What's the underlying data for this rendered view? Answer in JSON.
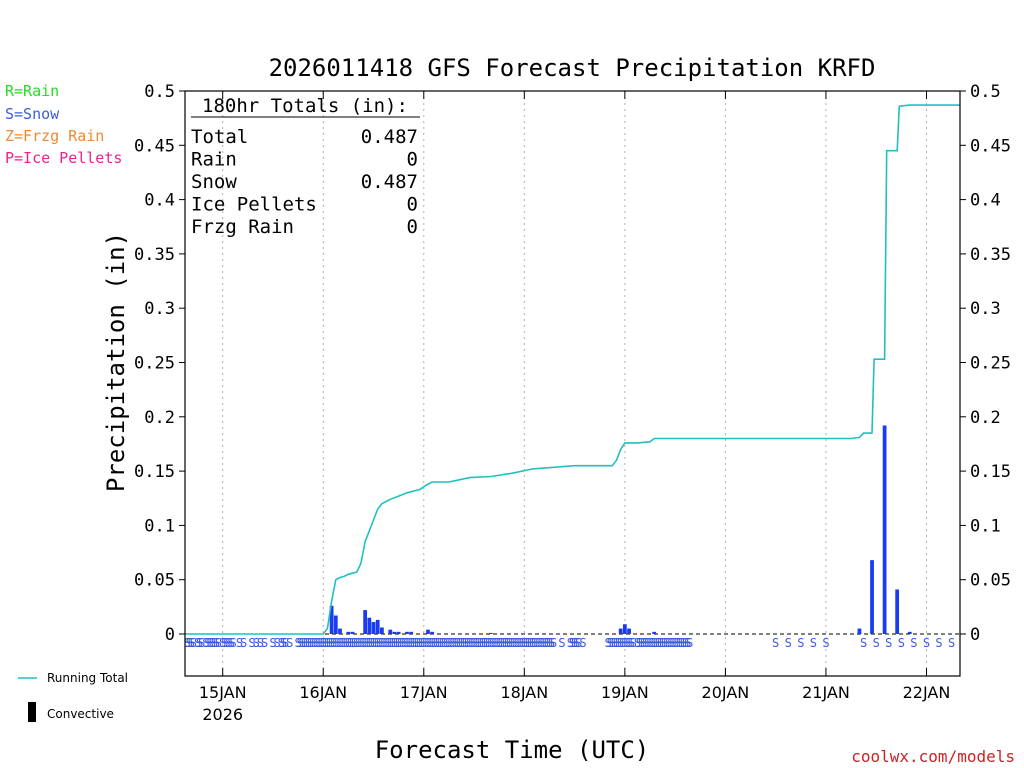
{
  "legend_left": {
    "rain": "R=Rain",
    "snow": "S=Snow",
    "frzg": "Z=Frzg Rain",
    "pellets": "P=Ice Pellets"
  },
  "legend_bottom": {
    "running_total": "Running Total",
    "convective": "Convective"
  },
  "totals_box": {
    "header": "180hr Totals (in):",
    "rows": [
      {
        "label": "Total",
        "value": "0.487"
      },
      {
        "label": "Rain",
        "value": "0"
      },
      {
        "label": "Snow",
        "value": "0.487"
      },
      {
        "label": "Ice Pellets",
        "value": "0"
      },
      {
        "label": "Frzg Rain",
        "value": "0"
      }
    ]
  },
  "credit": "coolwx.com/models",
  "colors": {
    "rain": "#22dd22",
    "snow": "#3b5ce0",
    "frzg": "#ee8833",
    "pellets": "#ee2288",
    "bar": "#1a3cf0",
    "total_line": "#20c0c0",
    "grid": "#b0b0b0"
  },
  "chart_data": {
    "type": "bar",
    "title": "2026011418 GFS Forecast Precipitation KRFD",
    "xlabel": "Forecast Time (UTC)",
    "ylabel": "Precipitation (in)",
    "ylim": [
      0,
      0.5
    ],
    "yticks": [
      "0",
      "0.05",
      "0.1",
      "0.15",
      "0.2",
      "0.25",
      "0.3",
      "0.35",
      "0.4",
      "0.45",
      "0.5"
    ],
    "xlim_hours": [
      -3,
      182
    ],
    "xticks": [
      {
        "hour": 6,
        "label": "15JAN",
        "sub": "2026"
      },
      {
        "hour": 30,
        "label": "16JAN"
      },
      {
        "hour": 54,
        "label": "17JAN"
      },
      {
        "hour": 78,
        "label": "18JAN"
      },
      {
        "hour": 102,
        "label": "19JAN"
      },
      {
        "hour": 126,
        "label": "20JAN"
      },
      {
        "hour": 150,
        "label": "21JAN"
      },
      {
        "hour": 174,
        "label": "22JAN"
      }
    ],
    "series": [
      {
        "name": "Precipitation",
        "kind": "bars",
        "hours": [
          32,
          33,
          34,
          36,
          37,
          40,
          41,
          42,
          43,
          44,
          46,
          47,
          48,
          50,
          51,
          55,
          56,
          70,
          101,
          102,
          103,
          109,
          158,
          161,
          164,
          167,
          170
        ],
        "values": [
          0.026,
          0.017,
          0.005,
          0.002,
          0.002,
          0.022,
          0.015,
          0.011,
          0.013,
          0.006,
          0.004,
          0.002,
          0.002,
          0.002,
          0.002,
          0.004,
          0.002,
          0.001,
          0.005,
          0.009,
          0.005,
          0.002,
          0.005,
          0.068,
          0.192,
          0.041,
          0.002
        ]
      },
      {
        "name": "Running Total",
        "kind": "line",
        "hours": [
          -3,
          29,
          30,
          31,
          32,
          33,
          34,
          35,
          36,
          37,
          38,
          39,
          40,
          41,
          42,
          43,
          44,
          45,
          46,
          48,
          50,
          52,
          53,
          55,
          56,
          57,
          60,
          65,
          70,
          75,
          80,
          90,
          95,
          98,
          99,
          100,
          101,
          102,
          105,
          108,
          109,
          150,
          155,
          156,
          158,
          159,
          161,
          161.5,
          163,
          164,
          164.5,
          166,
          167,
          167.5,
          170,
          182
        ],
        "values": [
          0,
          0,
          0,
          0.005,
          0.03,
          0.05,
          0.052,
          0.053,
          0.055,
          0.056,
          0.057,
          0.065,
          0.085,
          0.095,
          0.105,
          0.115,
          0.12,
          0.122,
          0.124,
          0.127,
          0.13,
          0.132,
          0.133,
          0.138,
          0.14,
          0.14,
          0.14,
          0.144,
          0.145,
          0.148,
          0.152,
          0.155,
          0.155,
          0.155,
          0.155,
          0.16,
          0.17,
          0.176,
          0.176,
          0.177,
          0.18,
          0.18,
          0.18,
          0.18,
          0.181,
          0.185,
          0.185,
          0.253,
          0.253,
          0.253,
          0.445,
          0.445,
          0.445,
          0.486,
          0.487,
          0.487
        ]
      }
    ],
    "ptype_hours": [
      -2.5,
      -2,
      -1.5,
      -1,
      0,
      0.5,
      1,
      2,
      2.5,
      3,
      3.5,
      4,
      4.5,
      5,
      6,
      6.5,
      7,
      7.5,
      8,
      8.5,
      10,
      11,
      13,
      14,
      15,
      16,
      18,
      19,
      20,
      20.5,
      21,
      22,
      24,
      24.5,
      25,
      25.5,
      26,
      26.5,
      27,
      27.5,
      28,
      28.5,
      29,
      29.5,
      30,
      30.5,
      31,
      31.5,
      32,
      32.5,
      33,
      33.5,
      34,
      34.5,
      35,
      35.5,
      36,
      36.5,
      37,
      37.5,
      38,
      38.5,
      39,
      39.5,
      40,
      40.5,
      41,
      41.5,
      42,
      42.5,
      43,
      43.5,
      44,
      44.5,
      45,
      45.5,
      46,
      46.5,
      47,
      47.5,
      48,
      48.5,
      49,
      49.5,
      50,
      50.5,
      51,
      51.5,
      52,
      52.5,
      53,
      53.5,
      54,
      54.5,
      55,
      55.5,
      56,
      56.5,
      57,
      57.5,
      58,
      58.5,
      59,
      59.5,
      60,
      60.5,
      61,
      61.5,
      62,
      62.5,
      63,
      63.5,
      64,
      64.5,
      65,
      65.5,
      66,
      66.5,
      67,
      67.5,
      68,
      68.5,
      69,
      69.5,
      70,
      70.5,
      71,
      71.5,
      72,
      72.5,
      73,
      73.5,
      74,
      74.5,
      75,
      75.5,
      76,
      76.5,
      77,
      77.5,
      78,
      78.5,
      79,
      79.5,
      80,
      80.5,
      81,
      81.5,
      82,
      82.5,
      83,
      83.5,
      84,
      84.5,
      85,
      87,
      89,
      89.5,
      90,
      90.5,
      91,
      92,
      98,
      98.5,
      99,
      99.5,
      100,
      100.5,
      101,
      101.5,
      102,
      102.5,
      103,
      103.5,
      104,
      105,
      105.5,
      106,
      106.5,
      107,
      107.5,
      108,
      108.5,
      109,
      109.5,
      110,
      110.5,
      111,
      111.5,
      112,
      112.5,
      113,
      113.5,
      114,
      114.5,
      115,
      115.5,
      116,
      116.5,
      117,
      117.5,
      138,
      141,
      144,
      147,
      150,
      159,
      162,
      165,
      168,
      171,
      174,
      177,
      180
    ],
    "ptype_symbol": "S"
  }
}
